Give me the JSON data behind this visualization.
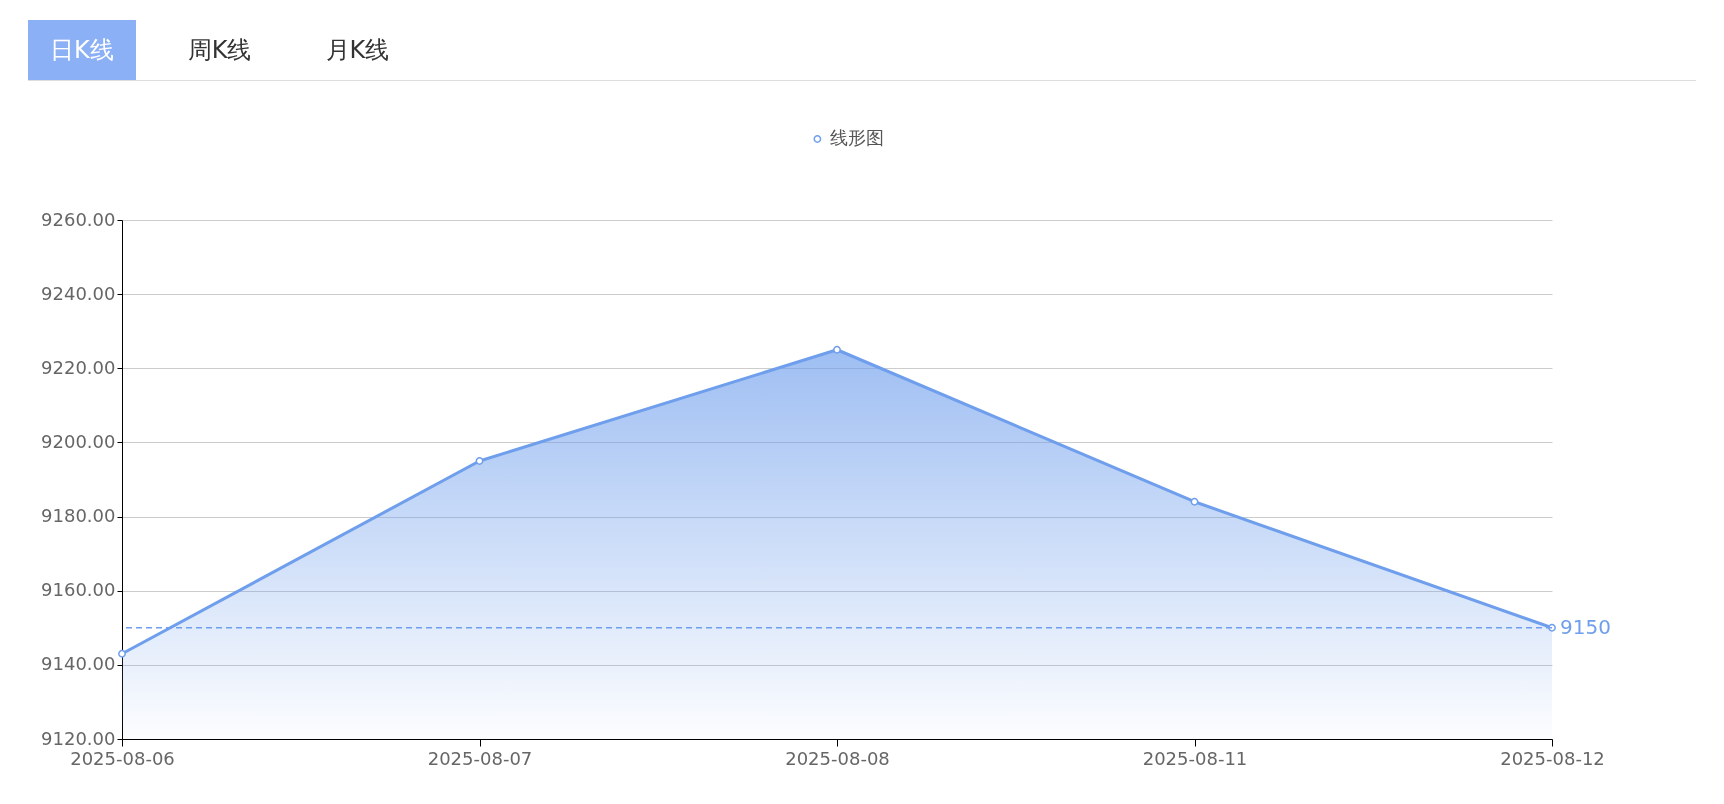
{
  "chart_data": {
    "type": "area",
    "annotations": [
      "日K线",
      "周K线",
      "月K线"
    ],
    "categories": [
      "2025-08-06",
      "2025-08-07",
      "2025-08-08",
      "2025-08-11",
      "2025-08-12"
    ],
    "series": [
      {
        "name": "线形图",
        "color": "#6e9eec",
        "values": [
          9143,
          9195,
          9225,
          9184,
          9150
        ]
      }
    ],
    "ylim": [
      9120,
      9260
    ],
    "yticks": [
      {
        "value": 9120,
        "label": "9120.00"
      },
      {
        "value": 9140,
        "label": "9140.00"
      },
      {
        "value": 9160,
        "label": "9160.00"
      },
      {
        "value": 9180,
        "label": "9180.00"
      },
      {
        "value": 9200,
        "label": "9200.00"
      },
      {
        "value": 9220,
        "label": "9220.00"
      },
      {
        "value": 9240,
        "label": "9240.00"
      },
      {
        "value": 9260,
        "label": "9260.00"
      }
    ],
    "ref_lines": [
      {
        "axis": "y",
        "value": 9150,
        "label": "9150",
        "line_style": "dashed"
      }
    ],
    "grid": "y",
    "legend": "top",
    "marker": "circle"
  }
}
